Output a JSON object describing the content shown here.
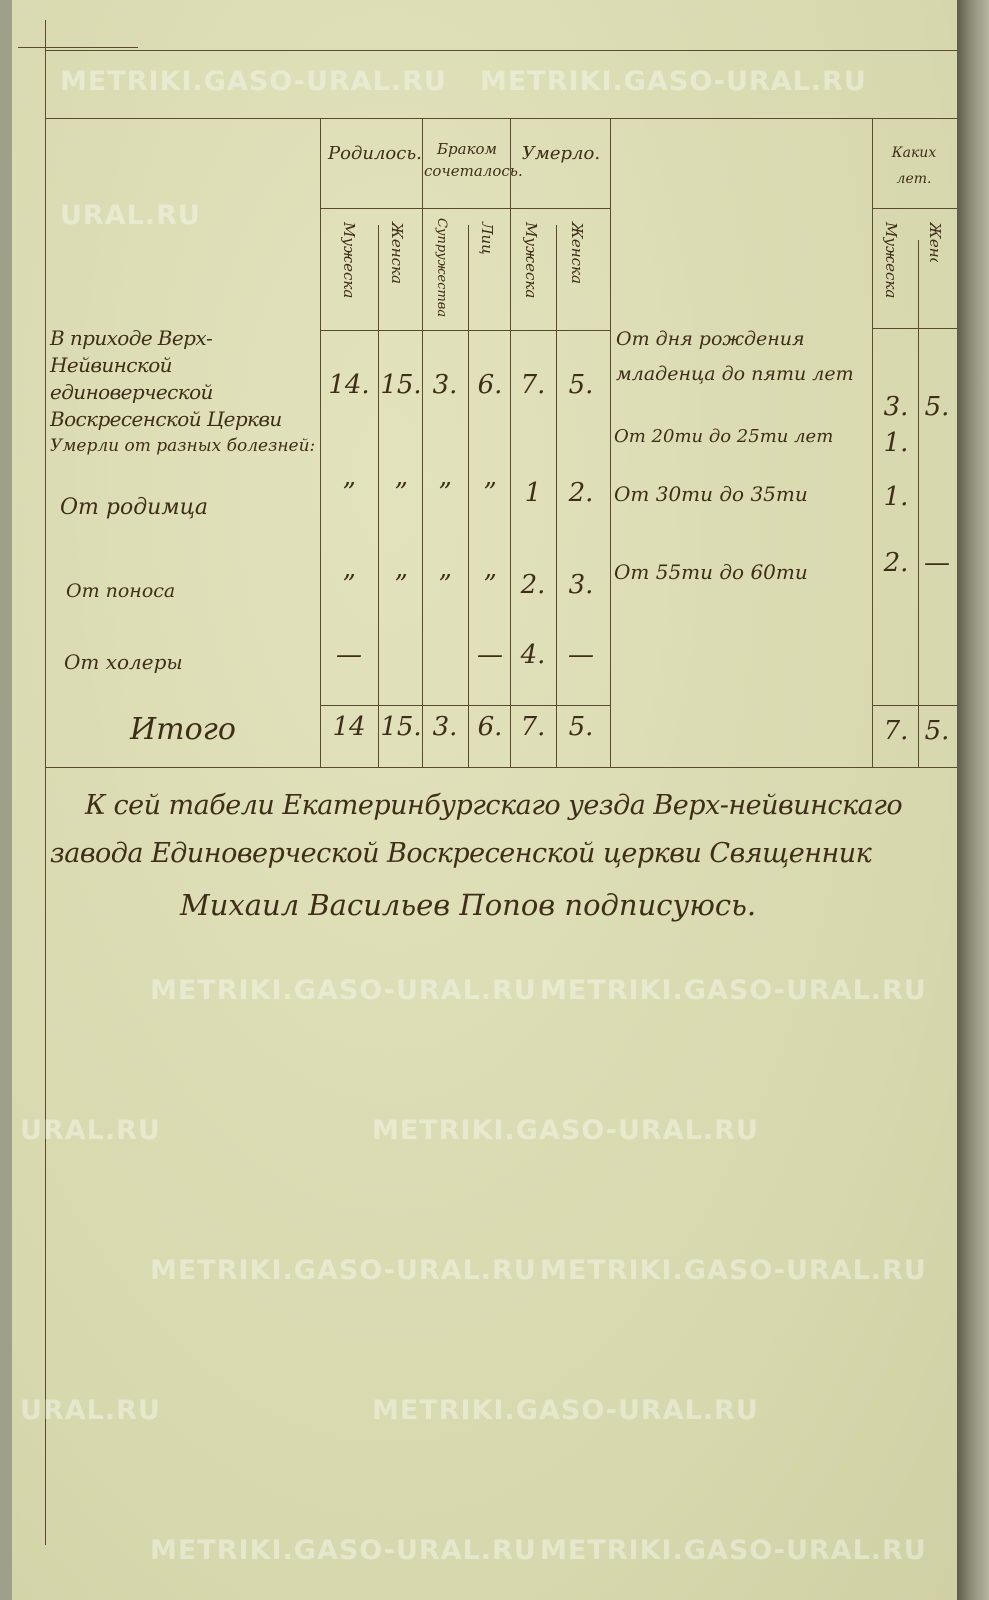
{
  "watermark": "METRIKI.GASO-URAL.RU",
  "watermark_partial": "URAL.RU",
  "table": {
    "headers": {
      "born": "Родилось.",
      "married": "Браком сочеталось.",
      "died": "Умерло.",
      "age_group": "Каких лет.",
      "male": "Мужеска",
      "female": "Женска",
      "couples": "Супружества",
      "persons": "Лиц"
    },
    "rows": [
      {
        "label": "В приходе Верх-Нейвинской единоверческой Воскресенской Церкви",
        "values": [
          "14.",
          "15.",
          "3.",
          "6.",
          "7.",
          "5."
        ]
      },
      {
        "label": "Умерли от разных болезней:",
        "values": []
      },
      {
        "label": "От родимца",
        "values": [
          "”",
          "”",
          "”",
          "”",
          "1",
          "2."
        ]
      },
      {
        "label": "От поноса",
        "values": [
          "”",
          "”",
          "”",
          "”",
          "2.",
          "3."
        ]
      },
      {
        "label": "От холеры",
        "values": [
          "—",
          "",
          "",
          "—",
          "4.",
          "—"
        ]
      },
      {
        "label": "Итого",
        "values": [
          "14",
          "15.",
          "3.",
          "6.",
          "7.",
          "5."
        ]
      }
    ],
    "ages": [
      {
        "label": "От дня рождения младенца до пяти лет",
        "male": "3.",
        "female": "5."
      },
      {
        "label": "От 20ти до 25ти лет",
        "male": "1.",
        "female": ""
      },
      {
        "label": "От 30ти до 35ти",
        "male": "1.",
        "female": ""
      },
      {
        "label": "От 55ти до 60ти",
        "male": "2.",
        "female": "—"
      }
    ],
    "age_total": {
      "male": "7.",
      "female": "5."
    }
  },
  "signature": {
    "line1": "К сей табели Екатеринбургскаго уезда Верх-нейвинскаго",
    "line2": "завода Единоверческой Воскресенской церкви Священник",
    "line3": "Михаил Васильев Попов подписуюсь."
  }
}
